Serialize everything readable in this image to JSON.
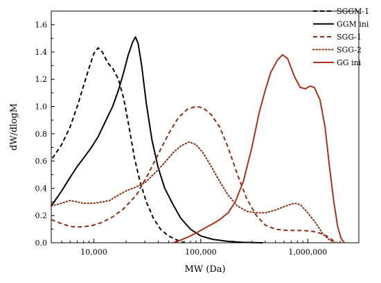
{
  "chart_data": {
    "type": "line",
    "xlabel": "MW (Da)",
    "ylabel": "dW/dlogM",
    "x_scale": "log",
    "xlim": [
      4000,
      3000000
    ],
    "ylim": [
      0,
      1.7
    ],
    "x_ticks": [
      {
        "value": 10000,
        "label": "10,000"
      },
      {
        "value": 100000,
        "label": "100,000"
      },
      {
        "value": 1000000,
        "label": "1,000,000"
      }
    ],
    "y_ticks": [
      {
        "value": 0.0,
        "label": "0.0"
      },
      {
        "value": 0.2,
        "label": "0.2"
      },
      {
        "value": 0.4,
        "label": "0.4"
      },
      {
        "value": 0.6,
        "label": "0.6"
      },
      {
        "value": 0.8,
        "label": "0.8"
      },
      {
        "value": 1.0,
        "label": "1.0"
      },
      {
        "value": 1.2,
        "label": "1.2"
      },
      {
        "value": 1.4,
        "label": "1.4"
      },
      {
        "value": 1.6,
        "label": "1.6"
      }
    ],
    "grid": false,
    "legend_position": "top-right",
    "series": [
      {
        "name": "SGGM-1",
        "color": "#000000",
        "dash": "dashed",
        "points": [
          [
            4100,
            0.62
          ],
          [
            5000,
            0.72
          ],
          [
            6000,
            0.85
          ],
          [
            7000,
            1.0
          ],
          [
            8000,
            1.15
          ],
          [
            9000,
            1.28
          ],
          [
            10000,
            1.39
          ],
          [
            11000,
            1.43
          ],
          [
            12000,
            1.4
          ],
          [
            13500,
            1.32
          ],
          [
            15000,
            1.28
          ],
          [
            17000,
            1.2
          ],
          [
            19000,
            1.06
          ],
          [
            21000,
            0.88
          ],
          [
            24000,
            0.62
          ],
          [
            27000,
            0.45
          ],
          [
            31000,
            0.3
          ],
          [
            36000,
            0.18
          ],
          [
            42000,
            0.1
          ],
          [
            50000,
            0.05
          ],
          [
            60000,
            0.02
          ],
          [
            70000,
            0.0
          ]
        ]
      },
      {
        "name": "GGM ini",
        "color": "#000000",
        "dash": "solid",
        "points": [
          [
            4000,
            0.27
          ],
          [
            5000,
            0.38
          ],
          [
            6000,
            0.48
          ],
          [
            7000,
            0.56
          ],
          [
            8000,
            0.62
          ],
          [
            9500,
            0.7
          ],
          [
            11000,
            0.78
          ],
          [
            13000,
            0.9
          ],
          [
            15000,
            1.0
          ],
          [
            17000,
            1.12
          ],
          [
            19000,
            1.25
          ],
          [
            21000,
            1.38
          ],
          [
            23000,
            1.47
          ],
          [
            24500,
            1.51
          ],
          [
            26000,
            1.46
          ],
          [
            28000,
            1.3
          ],
          [
            31000,
            1.02
          ],
          [
            35000,
            0.75
          ],
          [
            40000,
            0.55
          ],
          [
            46000,
            0.4
          ],
          [
            55000,
            0.28
          ],
          [
            65000,
            0.18
          ],
          [
            80000,
            0.1
          ],
          [
            100000,
            0.05
          ],
          [
            130000,
            0.025
          ],
          [
            180000,
            0.01
          ],
          [
            250000,
            0.003
          ],
          [
            380000,
            0.0
          ]
        ]
      },
      {
        "name": "SGG-1",
        "color": "#8B2E13",
        "dash": "dashed",
        "points": [
          [
            4000,
            0.17
          ],
          [
            5000,
            0.14
          ],
          [
            6000,
            0.12
          ],
          [
            7000,
            0.115
          ],
          [
            8500,
            0.12
          ],
          [
            10000,
            0.13
          ],
          [
            12000,
            0.15
          ],
          [
            15000,
            0.19
          ],
          [
            19000,
            0.25
          ],
          [
            25000,
            0.35
          ],
          [
            32000,
            0.5
          ],
          [
            40000,
            0.65
          ],
          [
            50000,
            0.8
          ],
          [
            62000,
            0.92
          ],
          [
            75000,
            0.98
          ],
          [
            90000,
            1.0
          ],
          [
            105000,
            0.99
          ],
          [
            125000,
            0.94
          ],
          [
            150000,
            0.85
          ],
          [
            180000,
            0.7
          ],
          [
            220000,
            0.5
          ],
          [
            270000,
            0.32
          ],
          [
            330000,
            0.2
          ],
          [
            400000,
            0.13
          ],
          [
            500000,
            0.1
          ],
          [
            650000,
            0.09
          ],
          [
            900000,
            0.09
          ],
          [
            1100000,
            0.085
          ],
          [
            1300000,
            0.07
          ],
          [
            1500000,
            0.05
          ],
          [
            1700000,
            0.02
          ],
          [
            1900000,
            0.0
          ]
        ]
      },
      {
        "name": "SGG-2",
        "color": "#8B2E13",
        "dash": "dotted",
        "points": [
          [
            4000,
            0.27
          ],
          [
            5000,
            0.29
          ],
          [
            6000,
            0.31
          ],
          [
            7000,
            0.3
          ],
          [
            8000,
            0.29
          ],
          [
            10000,
            0.29
          ],
          [
            12000,
            0.3
          ],
          [
            14000,
            0.31
          ],
          [
            17000,
            0.35
          ],
          [
            20000,
            0.38
          ],
          [
            25000,
            0.41
          ],
          [
            30000,
            0.44
          ],
          [
            37000,
            0.51
          ],
          [
            45000,
            0.58
          ],
          [
            55000,
            0.66
          ],
          [
            65000,
            0.71
          ],
          [
            78000,
            0.74
          ],
          [
            90000,
            0.72
          ],
          [
            105000,
            0.66
          ],
          [
            125000,
            0.56
          ],
          [
            150000,
            0.45
          ],
          [
            180000,
            0.35
          ],
          [
            220000,
            0.27
          ],
          [
            270000,
            0.23
          ],
          [
            330000,
            0.22
          ],
          [
            400000,
            0.22
          ],
          [
            500000,
            0.24
          ],
          [
            620000,
            0.27
          ],
          [
            750000,
            0.29
          ],
          [
            850000,
            0.28
          ],
          [
            1000000,
            0.22
          ],
          [
            1200000,
            0.14
          ],
          [
            1400000,
            0.06
          ],
          [
            1600000,
            0.02
          ],
          [
            1800000,
            0.0
          ]
        ]
      },
      {
        "name": "GG ini",
        "color": "#A8321A",
        "dash": "solid",
        "points": [
          [
            55000,
            0.0
          ],
          [
            65000,
            0.02
          ],
          [
            75000,
            0.04
          ],
          [
            90000,
            0.07
          ],
          [
            110000,
            0.11
          ],
          [
            130000,
            0.14
          ],
          [
            150000,
            0.17
          ],
          [
            180000,
            0.22
          ],
          [
            210000,
            0.3
          ],
          [
            250000,
            0.45
          ],
          [
            300000,
            0.7
          ],
          [
            350000,
            0.95
          ],
          [
            400000,
            1.12
          ],
          [
            450000,
            1.25
          ],
          [
            520000,
            1.34
          ],
          [
            580000,
            1.38
          ],
          [
            650000,
            1.35
          ],
          [
            750000,
            1.22
          ],
          [
            850000,
            1.14
          ],
          [
            950000,
            1.13
          ],
          [
            1050000,
            1.15
          ],
          [
            1150000,
            1.14
          ],
          [
            1300000,
            1.05
          ],
          [
            1450000,
            0.85
          ],
          [
            1600000,
            0.55
          ],
          [
            1750000,
            0.3
          ],
          [
            1900000,
            0.12
          ],
          [
            2050000,
            0.03
          ],
          [
            2200000,
            0.0
          ]
        ]
      }
    ]
  }
}
